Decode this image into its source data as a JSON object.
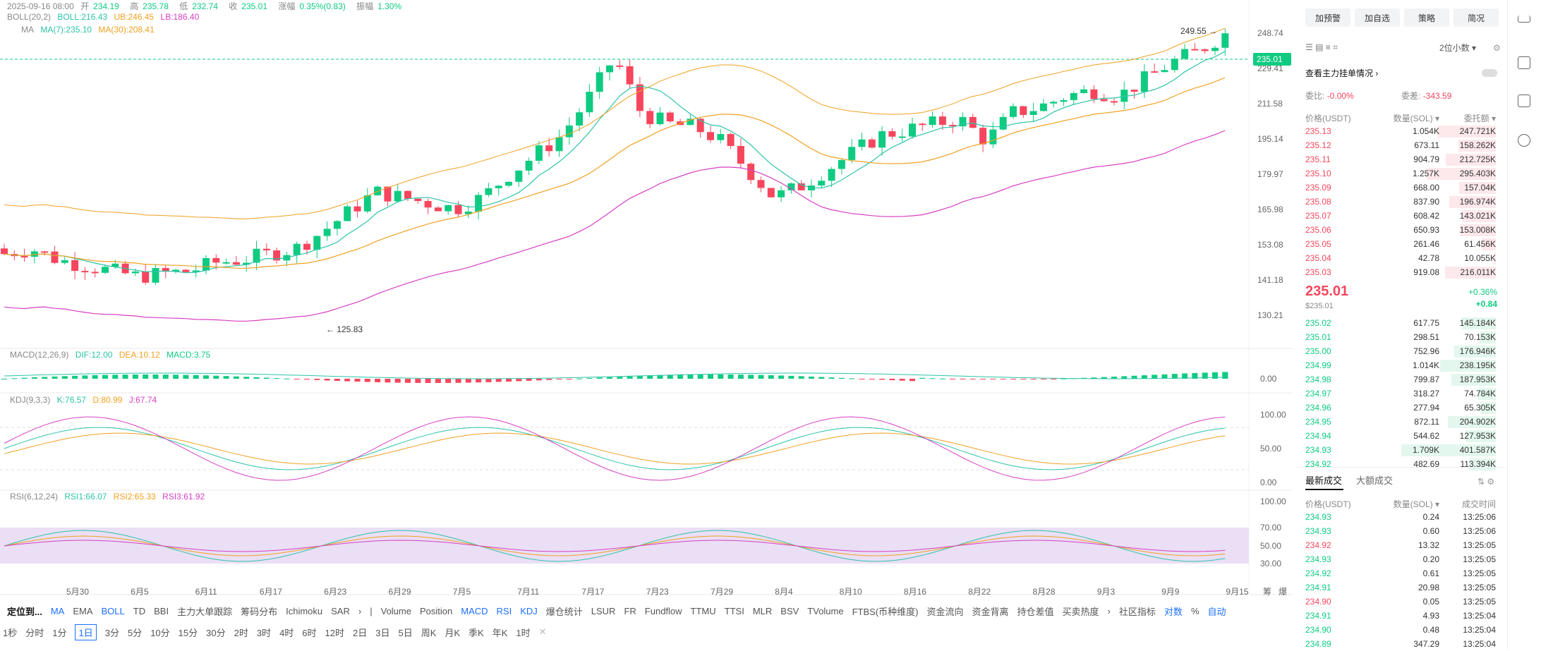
{
  "ohlc_bar": {
    "date": "2025-09-16 08:00",
    "open_label": "开",
    "open": "234.19",
    "high_label": "高",
    "high": "235.78",
    "low_label": "低",
    "low": "232.74",
    "close_label": "收",
    "close": "235.01",
    "change_label": "涨幅",
    "change": "0.35%(0.83)",
    "amp_label": "振幅",
    "amp": "1.30%"
  },
  "boll_legend": {
    "name": "BOLL(20,2)",
    "boll": "BOLL:216.43",
    "ub": "UB:246.45",
    "lb": "LB:186.40"
  },
  "ma_legend": {
    "name": "MA",
    "ma7": "MA(7):235.10",
    "ma30": "MA(30):208.41"
  },
  "price_axis": [
    "248.74",
    "229.41",
    "211.58",
    "195.14",
    "179.97",
    "165.98",
    "153.08",
    "141.18",
    "130.21"
  ],
  "current_price_tag": "235.01",
  "high_marker": "249.55",
  "low_marker": "125.83",
  "macd_legend": {
    "name": "MACD(12,26,9)",
    "dif": "DIF:12.00",
    "dea": "DEA:10.12",
    "macd": "MACD:3.75",
    "axis": "0.00"
  },
  "kdj_legend": {
    "name": "KDJ(9,3,3)",
    "k": "K:76.57",
    "d": "D:80.99",
    "j": "J:67.74",
    "axis": [
      "100.00",
      "50.00",
      "0.00"
    ]
  },
  "rsi_legend": {
    "name": "RSI(6,12,24)",
    "rsi1": "RSI1:66.07",
    "rsi2": "RSI2:65.33",
    "rsi3": "RSI3:61.92",
    "axis": [
      "100.00",
      "70.00",
      "50.00",
      "30.00"
    ]
  },
  "date_axis": [
    "5月30",
    "6月5",
    "6月11",
    "6月17",
    "6月23",
    "6月29",
    "7月5",
    "7月11",
    "7月17",
    "7月23",
    "7月29",
    "8月4",
    "8月10",
    "8月16",
    "8月22",
    "8月28",
    "9月3",
    "9月9",
    "9月15"
  ],
  "axis_corner": [
    "筹",
    "爆"
  ],
  "indicator_bar": {
    "locate": "定位到...",
    "main": [
      "MA",
      "EMA",
      "BOLL",
      "TD",
      "BBI",
      "主力大单跟踪",
      "筹码分布",
      "Ichimoku",
      "SAR"
    ],
    "sub": [
      "Volume",
      "Position",
      "MACD",
      "RSI",
      "KDJ",
      "爆仓统计",
      "LSUR",
      "FR",
      "Fundflow",
      "TTMU",
      "TTSI",
      "MLR",
      "BSV",
      "TVolume",
      "FTBS(币种维度)",
      "资金流向",
      "资金背离",
      "持仓差值",
      "买卖热度"
    ],
    "community": "社区指标",
    "log": "对数",
    "pct": "%",
    "auto": "自动"
  },
  "intervals": [
    "1秒",
    "分时",
    "1分",
    "1日",
    "3分",
    "5分",
    "10分",
    "15分",
    "30分",
    "2时",
    "3时",
    "4时",
    "6时",
    "12时",
    "2日",
    "3日",
    "5日",
    "周K",
    "月K",
    "季K",
    "年K",
    "1时"
  ],
  "active_interval": "1日",
  "panel": {
    "top_buttons": [
      "加预警",
      "加自选",
      "策略",
      "简况"
    ],
    "decimal_select": "2位小数",
    "link": "查看主力挂单情况",
    "ratio_label": "委比:",
    "ratio": "-0.00%",
    "diff_label": "委差:",
    "diff": "-343.59",
    "headers": [
      "价格(USDT)",
      "数量(SOL)",
      "委托额"
    ],
    "asks": [
      [
        "235.13",
        "1.054K",
        "247.721K"
      ],
      [
        "235.12",
        "673.11",
        "158.262K"
      ],
      [
        "235.11",
        "904.79",
        "212.725K"
      ],
      [
        "235.10",
        "1.257K",
        "295.403K"
      ],
      [
        "235.09",
        "668.00",
        "157.04K"
      ],
      [
        "235.08",
        "837.90",
        "196.974K"
      ],
      [
        "235.07",
        "608.42",
        "143.021K"
      ],
      [
        "235.06",
        "650.93",
        "153.008K"
      ],
      [
        "235.05",
        "261.46",
        "61.456K"
      ],
      [
        "235.04",
        "42.78",
        "10.055K"
      ],
      [
        "235.03",
        "919.08",
        "216.011K"
      ]
    ],
    "mid_price": "235.01",
    "mid_sub": "$235.01",
    "mid_pct": "+0.36%",
    "mid_chg": "+0.84",
    "bids": [
      [
        "235.02",
        "617.75",
        "145.184K"
      ],
      [
        "235.01",
        "298.51",
        "70.153K"
      ],
      [
        "235.00",
        "752.96",
        "176.946K"
      ],
      [
        "234.99",
        "1.014K",
        "238.195K"
      ],
      [
        "234.98",
        "799.87",
        "187.953K"
      ],
      [
        "234.97",
        "318.27",
        "74.784K"
      ],
      [
        "234.96",
        "277.94",
        "65.305K"
      ],
      [
        "234.95",
        "872.11",
        "204.902K"
      ],
      [
        "234.94",
        "544.62",
        "127.953K"
      ],
      [
        "234.93",
        "1.709K",
        "401.587K"
      ],
      [
        "234.92",
        "482.69",
        "113.394K"
      ]
    ],
    "trade_tabs": [
      "最新成交",
      "大额成交"
    ],
    "trade_headers": [
      "价格(USDT)",
      "数量(SOL)",
      "成交时间"
    ],
    "trades": [
      [
        "234.93",
        "0.24",
        "13:25:06",
        "up"
      ],
      [
        "234.93",
        "0.60",
        "13:25:06",
        "up"
      ],
      [
        "234.92",
        "13.32",
        "13:25:05",
        "down"
      ],
      [
        "234.93",
        "0.20",
        "13:25:05",
        "up"
      ],
      [
        "234.92",
        "0.61",
        "13:25:05",
        "up"
      ],
      [
        "234.91",
        "20.98",
        "13:25:05",
        "up"
      ],
      [
        "234.90",
        "0.05",
        "13:25:05",
        "down"
      ],
      [
        "234.91",
        "4.93",
        "13:25:04",
        "up"
      ],
      [
        "234.90",
        "0.48",
        "13:25:04",
        "up"
      ],
      [
        "234.89",
        "347.29",
        "13:25:04",
        "up"
      ]
    ]
  },
  "colors": {
    "up": "#0ecb81",
    "down": "#f6465d",
    "accent": "#1e6fff",
    "boll_band": "#f0a020",
    "boll_lb": "#d63fc5",
    "ma7": "#2cc3a8"
  }
}
